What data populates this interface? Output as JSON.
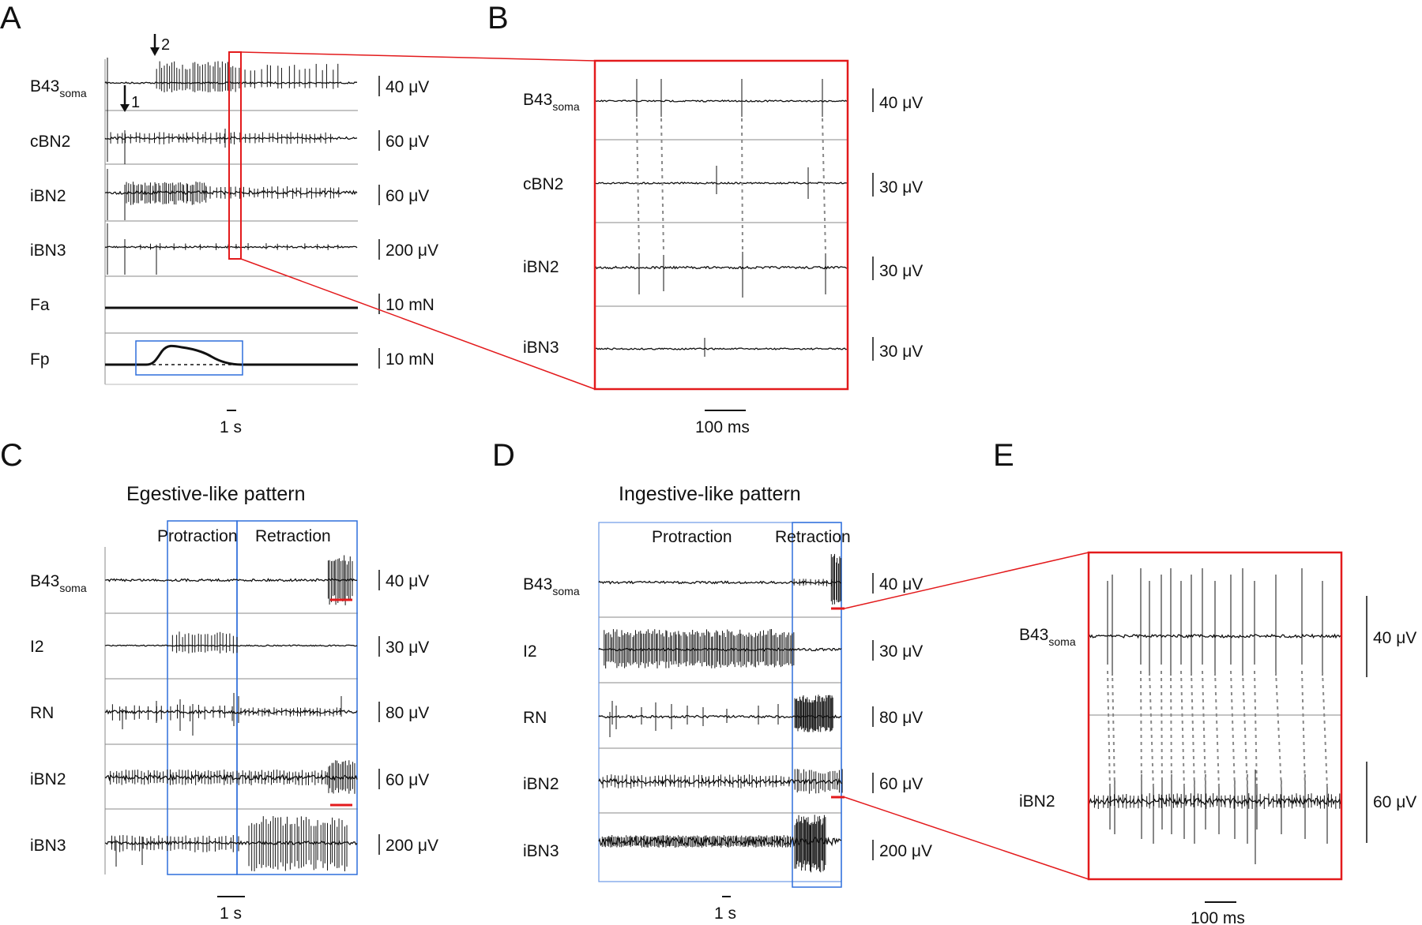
{
  "panels": {
    "A": {
      "letter": "A",
      "traces": [
        {
          "label": "B43",
          "sub": "soma",
          "scale": "40 μV"
        },
        {
          "label": "cBN2",
          "sub": "",
          "scale": "60 μV"
        },
        {
          "label": "iBN2",
          "sub": "",
          "scale": "60 μV"
        },
        {
          "label": "iBN3",
          "sub": "",
          "scale": "200 μV"
        },
        {
          "label": "Fa",
          "sub": "",
          "scale": "10 mN"
        },
        {
          "label": "Fp",
          "sub": "",
          "scale": "10 mN"
        }
      ],
      "arrow1": "1",
      "arrow2": "2",
      "time_scale": "1 s"
    },
    "B": {
      "letter": "B",
      "traces": [
        {
          "label": "B43",
          "sub": "soma",
          "scale": "40 μV"
        },
        {
          "label": "cBN2",
          "sub": "",
          "scale": "30 μV"
        },
        {
          "label": "iBN2",
          "sub": "",
          "scale": "30 μV"
        },
        {
          "label": "iBN3",
          "sub": "",
          "scale": "30 μV"
        }
      ],
      "time_scale": "100 ms"
    },
    "C": {
      "letter": "C",
      "title": "Egestive-like pattern",
      "protraction": "Protraction",
      "retraction": "Retraction",
      "traces": [
        {
          "label": "B43",
          "sub": "soma",
          "scale": "40 μV"
        },
        {
          "label": "I2",
          "sub": "",
          "scale": "30 μV"
        },
        {
          "label": "RN",
          "sub": "",
          "scale": "80 μV"
        },
        {
          "label": "iBN2",
          "sub": "",
          "scale": "60 μV"
        },
        {
          "label": "iBN3",
          "sub": "",
          "scale": "200 μV"
        }
      ],
      "time_scale": "1 s"
    },
    "D": {
      "letter": "D",
      "title": "Ingestive-like pattern",
      "protraction": "Protraction",
      "retraction": "Retraction",
      "traces": [
        {
          "label": "B43",
          "sub": "soma",
          "scale": "40 μV"
        },
        {
          "label": "I2",
          "sub": "",
          "scale": "30 μV"
        },
        {
          "label": "RN",
          "sub": "",
          "scale": "80 μV"
        },
        {
          "label": "iBN2",
          "sub": "",
          "scale": "60 μV"
        },
        {
          "label": "iBN3",
          "sub": "",
          "scale": "200 μV"
        }
      ],
      "time_scale": "1 s"
    },
    "E": {
      "letter": "E",
      "traces": [
        {
          "label": "B43",
          "sub": "soma",
          "scale": "40 μV"
        },
        {
          "label": "iBN2",
          "sub": "",
          "scale": "60 μV"
        }
      ],
      "time_scale": "100 ms"
    }
  },
  "colors": {
    "highlight": "#e31a1c",
    "phase_box": "#2f6fdc",
    "trace": "#111111",
    "grid": "#888888"
  }
}
